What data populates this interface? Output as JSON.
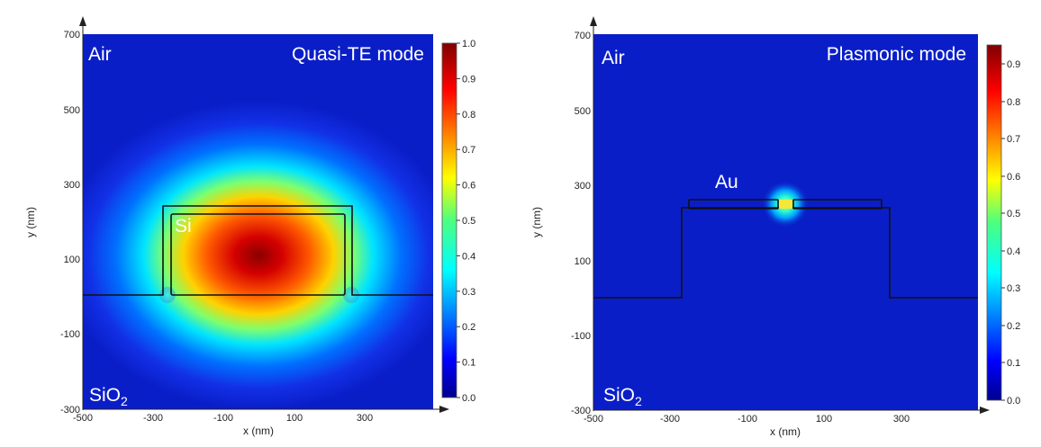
{
  "chart_data": [
    {
      "type": "heatmap",
      "title": "Quasi-TE mode",
      "xlabel": "x (nm)",
      "ylabel": "y (nm)",
      "xlim": [
        -500,
        500
      ],
      "ylim": [
        -300,
        700
      ],
      "x_ticks": [
        "-500",
        "-300",
        "-100",
        "100",
        "300"
      ],
      "y_ticks": [
        "700",
        "500",
        "300",
        "100",
        "-100",
        "-300"
      ],
      "colorbar": {
        "min": 0.0,
        "max": 1.0,
        "ticks": [
          "1.0",
          "0.9",
          "0.8",
          "0.7",
          "0.6",
          "0.5",
          "0.4",
          "0.3",
          "0.2",
          "0.1",
          "0.0"
        ]
      },
      "labels": {
        "top": "Air",
        "core": "Si",
        "substrate_main": "SiO",
        "substrate_sub": "2"
      }
    },
    {
      "type": "heatmap",
      "title": "Plasmonic mode",
      "xlabel": "x (nm)",
      "ylabel": "y (nm)",
      "xlim": [
        -500,
        500
      ],
      "ylim": [
        -300,
        700
      ],
      "x_ticks": [
        "-500",
        "-300",
        "-100",
        "100",
        "300"
      ],
      "y_ticks": [
        "700",
        "500",
        "300",
        "100",
        "-100",
        "-300"
      ],
      "colorbar": {
        "min": 0.0,
        "max": 0.95,
        "ticks": [
          "0.9",
          "0.8",
          "0.7",
          "0.6",
          "0.5",
          "0.4",
          "0.3",
          "0.2",
          "0.1",
          "0.0"
        ]
      },
      "labels": {
        "top": "Air",
        "core": "Au",
        "substrate_main": "SiO",
        "substrate_sub": "2"
      }
    }
  ],
  "colors": {
    "field_low": "#0a1ec8",
    "field_high": "#8a0000",
    "outline": "#111111"
  }
}
